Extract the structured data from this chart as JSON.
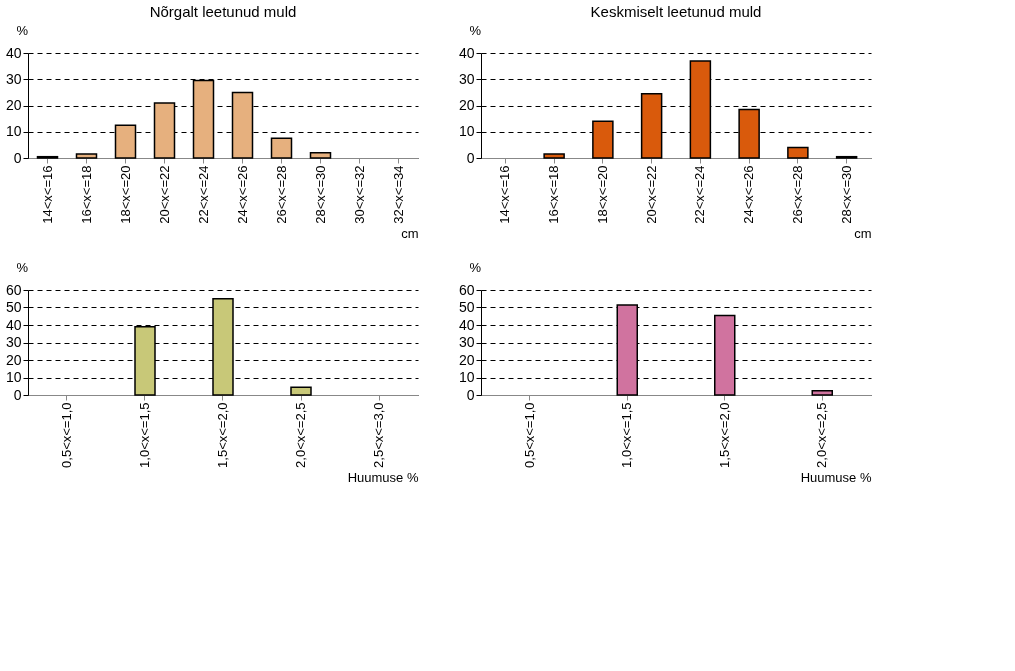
{
  "chart_data": [
    {
      "type": "bar",
      "title": "Nõrgalt leetunud muld",
      "xlabel": "cm",
      "ylabel": "%",
      "categories": [
        "14<x<=16",
        "16<x<=18",
        "18<x<=20",
        "20<x<=22",
        "22<x<=24",
        "24<x<=26",
        "26<x<=28",
        "28<x<=30",
        "30<x<=32",
        "32<x<=34"
      ],
      "values": [
        0.5,
        1.5,
        12.5,
        21,
        29.5,
        25,
        7.5,
        2,
        0,
        0
      ],
      "color": "#e6b07e",
      "ylim": [
        0,
        40
      ],
      "yticks": [
        0,
        10,
        20,
        30,
        40
      ],
      "grid": "y"
    },
    {
      "type": "bar",
      "title": "Keskmiselt leetunud muld",
      "xlabel": "cm",
      "ylabel": "%",
      "categories": [
        "14<x<=16",
        "16<x<=18",
        "18<x<=20",
        "20<x<=22",
        "22<x<=24",
        "24<x<=26",
        "26<x<=28",
        "28<x<=30"
      ],
      "values": [
        0,
        1.5,
        14,
        24.5,
        37,
        18.5,
        4,
        0.5
      ],
      "color": "#d95a0c",
      "ylim": [
        0,
        40
      ],
      "yticks": [
        0,
        10,
        20,
        30,
        40
      ],
      "grid": "y"
    },
    {
      "type": "bar",
      "xlabel": "Huumuse %",
      "ylabel": "%",
      "categories": [
        "0,5<x<=1,0",
        "1,0<x<=1,5",
        "1,5<x<=2,0",
        "2,0<x<=2,5",
        "2,5<x<=3,0"
      ],
      "values": [
        0,
        39,
        55,
        4.5,
        0
      ],
      "color": "#c8c878",
      "ylim": [
        0,
        60
      ],
      "yticks": [
        0,
        10,
        20,
        30,
        40,
        50,
        60
      ],
      "grid": "y"
    },
    {
      "type": "bar",
      "xlabel": "Huumuse %",
      "ylabel": "%",
      "categories": [
        "0,5<x<=1,0",
        "1,0<x<=1,5",
        "1,5<x<=2,0",
        "2,0<x<=2,5"
      ],
      "values": [
        0,
        51.5,
        45.5,
        2.5
      ],
      "color": "#d0739f",
      "ylim": [
        0,
        60
      ],
      "yticks": [
        0,
        10,
        20,
        30,
        40,
        50,
        60
      ],
      "grid": "y"
    }
  ]
}
